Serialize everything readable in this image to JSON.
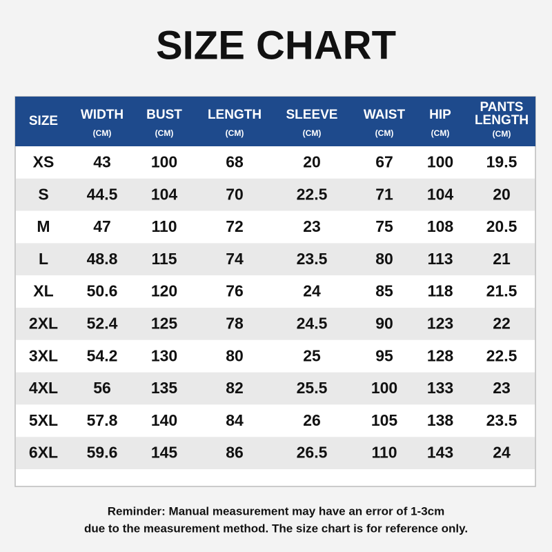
{
  "title": "SIZE CHART",
  "table": {
    "columns": [
      {
        "name": [
          "SIZE"
        ]
      },
      {
        "name": [
          "WIDTH"
        ],
        "unit": "(CM)"
      },
      {
        "name": [
          "BUST"
        ],
        "unit": "(CM)"
      },
      {
        "name": [
          "LENGTH"
        ],
        "unit": "(CM)"
      },
      {
        "name": [
          "SLEEVE"
        ],
        "unit": "(CM)"
      },
      {
        "name": [
          "WAIST"
        ],
        "unit": "(CM)"
      },
      {
        "name": [
          "HIP"
        ],
        "unit": "(CM)"
      },
      {
        "name": [
          "PANTS",
          "LENGTH"
        ],
        "unit": "(CM)"
      }
    ],
    "rows": [
      [
        "XS",
        43,
        100,
        68,
        20,
        67,
        100,
        19.5
      ],
      [
        "S",
        44.5,
        104,
        70,
        22.5,
        71,
        104,
        20
      ],
      [
        "M",
        47,
        110,
        72,
        23,
        75,
        108,
        20.5
      ],
      [
        "L",
        48.8,
        115,
        74,
        23.5,
        80,
        113,
        21
      ],
      [
        "XL",
        50.6,
        120,
        76,
        24,
        85,
        118,
        21.5
      ],
      [
        "2XL",
        52.4,
        125,
        78,
        24.5,
        90,
        123,
        22
      ],
      [
        "3XL",
        54.2,
        130,
        80,
        25,
        95,
        128,
        22.5
      ],
      [
        "4XL",
        56,
        135,
        82,
        25.5,
        100,
        133,
        23
      ],
      [
        "5XL",
        57.8,
        140,
        84,
        26,
        105,
        138,
        23.5
      ],
      [
        "6XL",
        59.6,
        145,
        86,
        26.5,
        110,
        143,
        24
      ]
    ]
  },
  "reminder": [
    "Reminder: Manual measurement may have an error of 1-3cm",
    "due to the measurement method. The size chart is for reference only."
  ]
}
